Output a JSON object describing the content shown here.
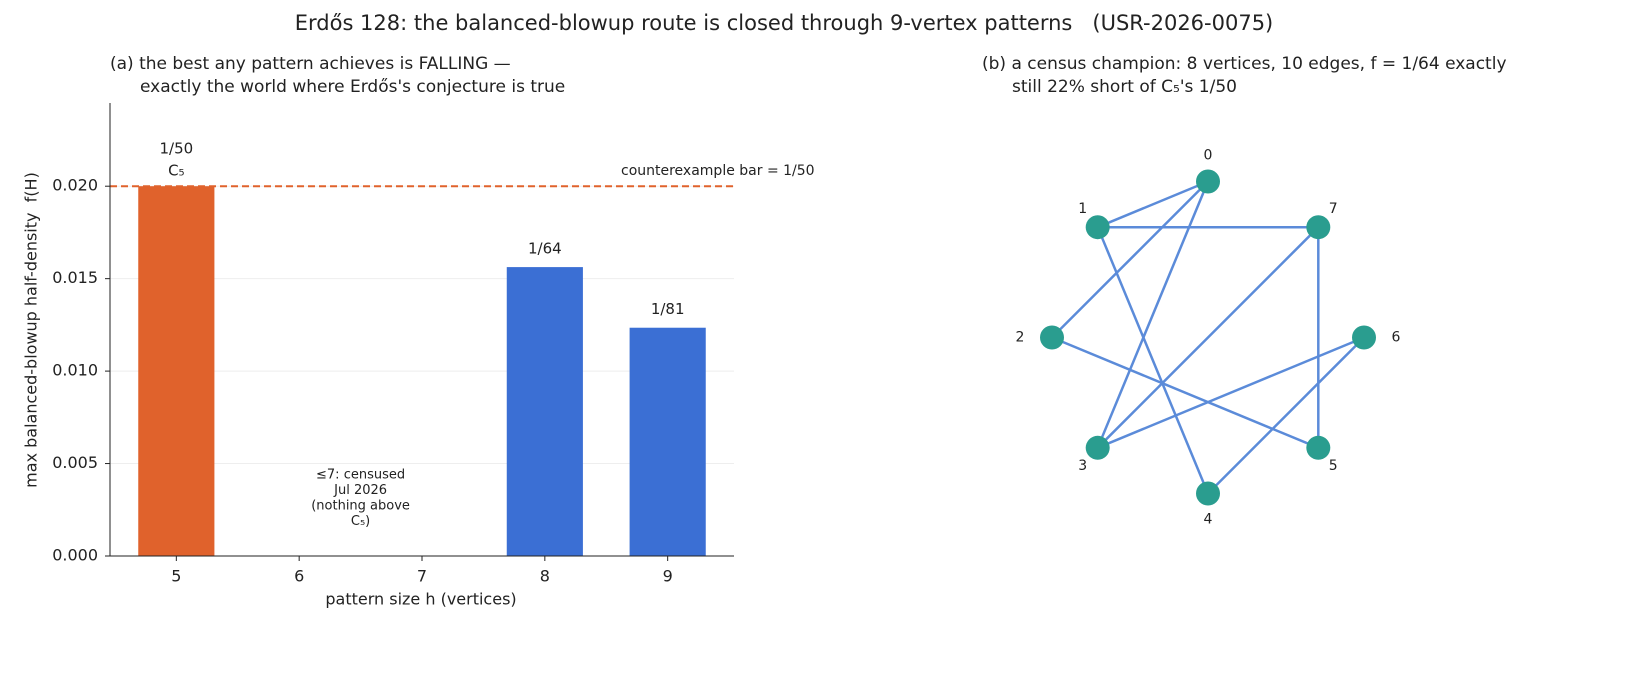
{
  "title": "Erdős 128: the balanced-blowup route is closed through 9-vertex patterns   (USR-2026-0075)",
  "chart_data": {
    "type": "bar",
    "title": [
      "(a) the best any pattern achieves is FALLING —",
      "exactly the world where Erdős's conjecture is true"
    ],
    "x_label": "pattern size h (vertices)",
    "y_label": "max balanced-blowup half-density  f(H)",
    "categories": [
      "5",
      "6",
      "7",
      "8",
      "9"
    ],
    "values": [
      0.02,
      null,
      null,
      0.015625,
      0.012346
    ],
    "value_labels": [
      "1/50",
      null,
      null,
      "1/64",
      "1/81"
    ],
    "bar_notes": [
      "C₅",
      null,
      null,
      null,
      null
    ],
    "colors": [
      "#e0622c",
      null,
      null,
      "#3b6fd4",
      "#3b6fd4"
    ],
    "ylim": [
      0,
      0.0245
    ],
    "yticks": [
      {
        "value": 0,
        "label": "0.000"
      },
      {
        "value": 0.005,
        "label": "0.005"
      },
      {
        "value": 0.01,
        "label": "0.010"
      },
      {
        "value": 0.015,
        "label": "0.015"
      },
      {
        "value": 0.02,
        "label": "0.020"
      }
    ],
    "grid": true,
    "hline": {
      "value": 0.02,
      "label": "counterexample bar = 1/50",
      "color": "#e0622c"
    },
    "note": [
      "≤7: censused",
      "Jul 2026",
      "(nothing above",
      "C₅)"
    ]
  },
  "graph": {
    "title": [
      "(b) a census champion: 8 vertices, 10 edges, f = 1/64 exactly",
      "still 22% short of C₅'s 1/50"
    ],
    "nodes": [
      "0",
      "1",
      "2",
      "3",
      "4",
      "5",
      "6",
      "7"
    ],
    "edges": [
      [
        1,
        0
      ],
      [
        1,
        7
      ],
      [
        0,
        2
      ],
      [
        0,
        3
      ],
      [
        1,
        4
      ],
      [
        7,
        3
      ],
      [
        7,
        5
      ],
      [
        2,
        5
      ],
      [
        6,
        3
      ],
      [
        6,
        4
      ]
    ],
    "node_color": "#2a9d8f",
    "edge_color": "#5b8bd9"
  }
}
